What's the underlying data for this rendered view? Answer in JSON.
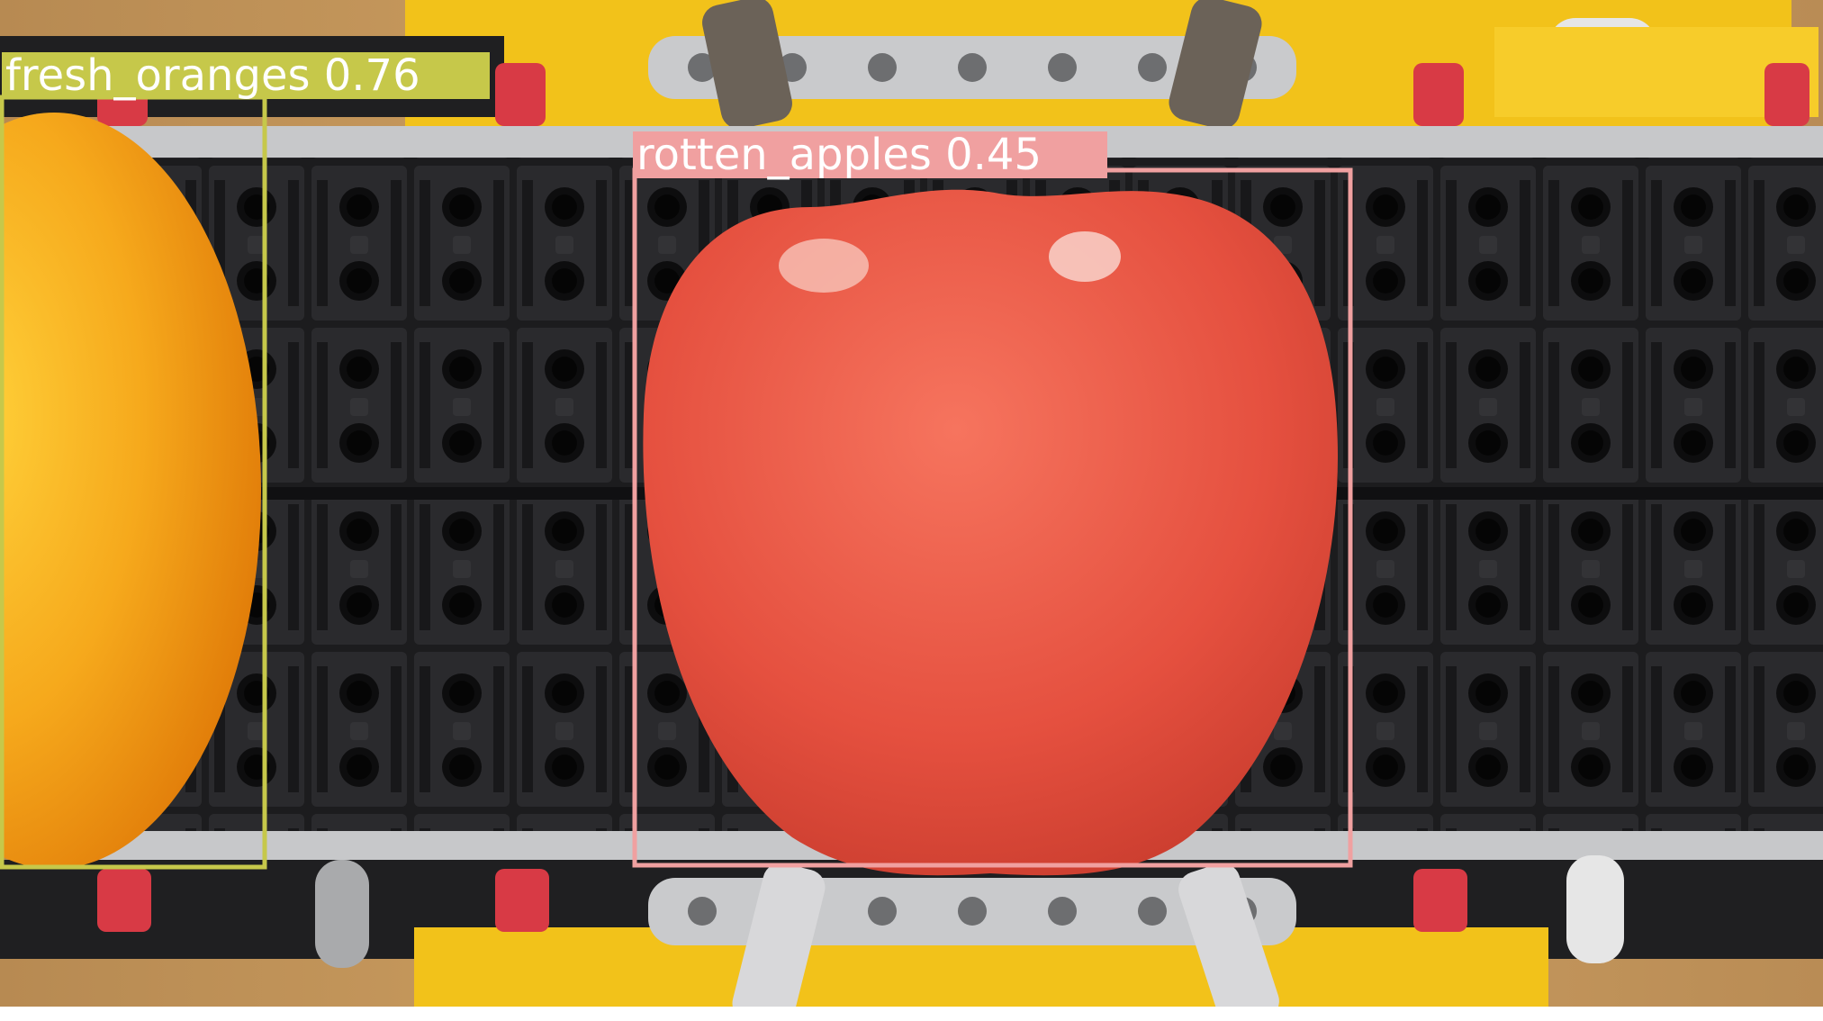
{
  "photo": {
    "subject": "Fruit on a toy-brick conveyor belt with object detection boxes"
  },
  "detections": [
    {
      "label": "fresh_oranges 0.76",
      "class": "fresh_oranges",
      "score": "0.76",
      "color": "#c6c84a"
    },
    {
      "label": "rotten_apples 0.45",
      "class": "rotten_apples",
      "score": "0.45",
      "color": "#f0a0a0"
    }
  ],
  "colors": {
    "orange_box": "#c6c84a",
    "apple_box": "#f0a0a0",
    "belt": "#1c1c1e",
    "rail": "#c7c8ca",
    "frame_yellow": "#f2c21a",
    "table": "#c89a5c",
    "peg_red": "#d83a45"
  }
}
